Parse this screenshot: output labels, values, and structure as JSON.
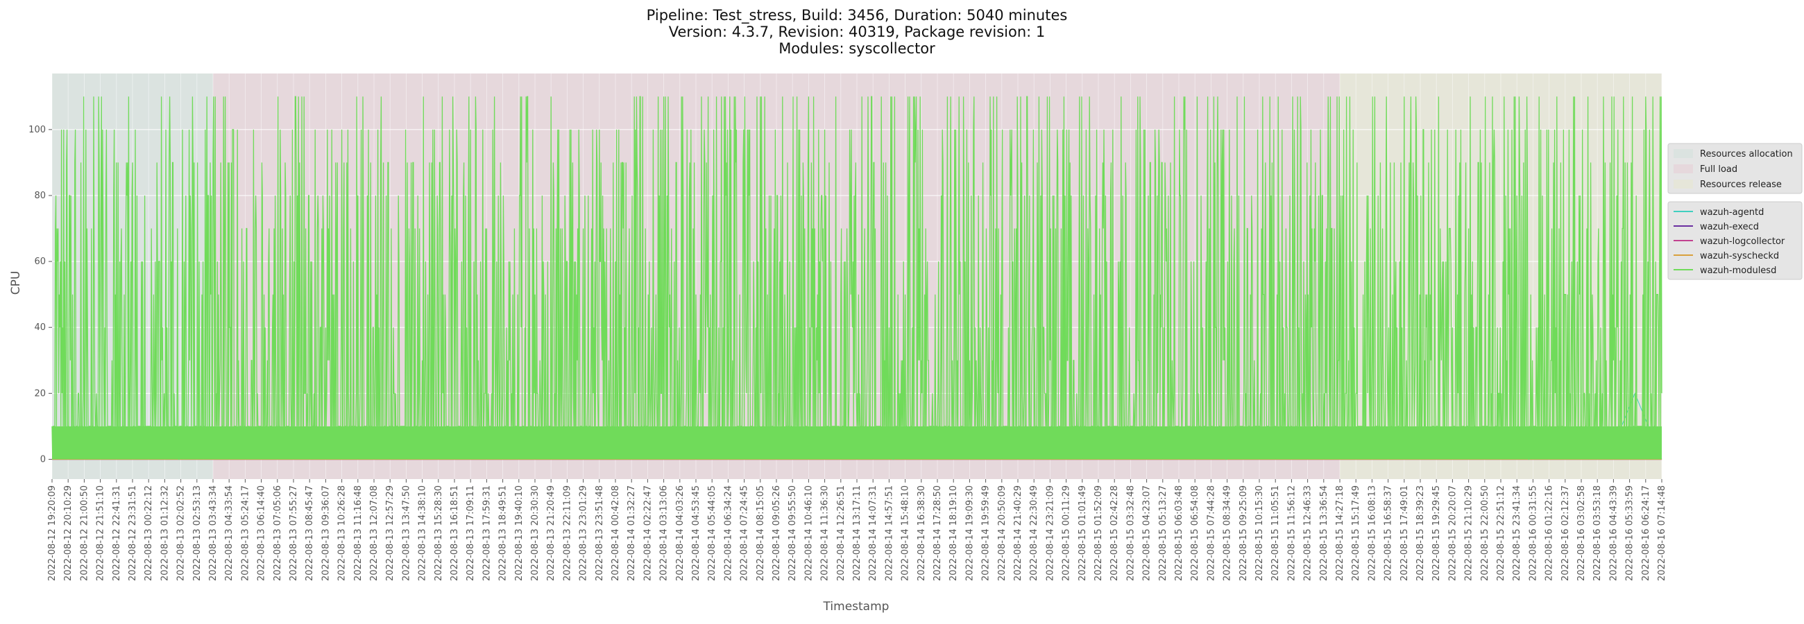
{
  "title_lines": [
    "Pipeline: Test_stress, Build: 3456, Duration: 5040 minutes",
    "Version: 4.3.7, Revision: 40319, Package revision: 1",
    "Modules: syscollector"
  ],
  "chart_data": {
    "type": "line",
    "xlabel": "Timestamp",
    "ylabel": "CPU",
    "ylim": [
      -6,
      117
    ],
    "yticks": [
      0,
      20,
      40,
      60,
      80,
      100
    ],
    "grid": true,
    "x_tick_labels": [
      "2022-08-12 19:20:09",
      "2022-08-12 20:10:29",
      "2022-08-12 21:00:50",
      "2022-08-12 21:51:10",
      "2022-08-12 22:41:31",
      "2022-08-12 23:31:51",
      "2022-08-13 00:22:12",
      "2022-08-13 01:12:32",
      "2022-08-13 02:02:52",
      "2022-08-13 02:53:13",
      "2022-08-13 03:43:34",
      "2022-08-13 04:33:54",
      "2022-08-13 05:24:17",
      "2022-08-13 06:14:40",
      "2022-08-13 07:05:06",
      "2022-08-13 07:55:27",
      "2022-08-13 08:45:47",
      "2022-08-13 09:36:07",
      "2022-08-13 10:26:28",
      "2022-08-13 11:16:48",
      "2022-08-13 12:07:08",
      "2022-08-13 12:57:29",
      "2022-08-13 13:47:50",
      "2022-08-13 14:38:10",
      "2022-08-13 15:28:30",
      "2022-08-13 16:18:51",
      "2022-08-13 17:09:11",
      "2022-08-13 17:59:31",
      "2022-08-13 18:49:51",
      "2022-08-13 19:40:10",
      "2022-08-13 20:30:30",
      "2022-08-13 21:20:49",
      "2022-08-13 22:11:09",
      "2022-08-13 23:01:29",
      "2022-08-13 23:51:48",
      "2022-08-14 00:42:08",
      "2022-08-14 01:32:27",
      "2022-08-14 02:22:47",
      "2022-08-14 03:13:06",
      "2022-08-14 04:03:26",
      "2022-08-14 04:53:45",
      "2022-08-14 05:44:05",
      "2022-08-14 06:34:24",
      "2022-08-14 07:24:45",
      "2022-08-14 08:15:05",
      "2022-08-14 09:05:26",
      "2022-08-14 09:55:50",
      "2022-08-14 10:46:10",
      "2022-08-14 11:36:30",
      "2022-08-14 12:26:51",
      "2022-08-14 13:17:11",
      "2022-08-14 14:07:31",
      "2022-08-14 14:57:51",
      "2022-08-14 15:48:10",
      "2022-08-14 16:38:30",
      "2022-08-14 17:28:50",
      "2022-08-14 18:19:10",
      "2022-08-14 19:09:30",
      "2022-08-14 19:59:49",
      "2022-08-14 20:50:09",
      "2022-08-14 21:40:29",
      "2022-08-14 22:30:49",
      "2022-08-14 23:21:09",
      "2022-08-15 00:11:29",
      "2022-08-15 01:01:49",
      "2022-08-15 01:52:09",
      "2022-08-15 02:42:28",
      "2022-08-15 03:32:48",
      "2022-08-15 04:23:07",
      "2022-08-15 05:13:27",
      "2022-08-15 06:03:48",
      "2022-08-15 06:54:08",
      "2022-08-15 07:44:28",
      "2022-08-15 08:34:49",
      "2022-08-15 09:25:09",
      "2022-08-15 10:15:30",
      "2022-08-15 11:05:51",
      "2022-08-15 11:56:12",
      "2022-08-15 12:46:33",
      "2022-08-15 13:36:54",
      "2022-08-15 14:27:18",
      "2022-08-15 15:17:49",
      "2022-08-15 16:08:13",
      "2022-08-15 16:58:37",
      "2022-08-15 17:49:01",
      "2022-08-15 18:39:23",
      "2022-08-15 19:29:45",
      "2022-08-15 20:20:07",
      "2022-08-15 21:10:29",
      "2022-08-15 22:00:50",
      "2022-08-15 22:51:12",
      "2022-08-15 23:41:34",
      "2022-08-16 00:31:55",
      "2022-08-16 01:22:16",
      "2022-08-16 02:12:37",
      "2022-08-16 03:02:58",
      "2022-08-16 03:53:18",
      "2022-08-16 04:43:39",
      "2022-08-16 05:33:59",
      "2022-08-16 06:24:17",
      "2022-08-16 07:14:48"
    ],
    "phases": [
      {
        "name": "Resources allocation",
        "start": "2022-08-12 19:20:09",
        "end": "2022-08-13 03:43:34",
        "color": "#dbe3e0"
      },
      {
        "name": "Full load",
        "start": "2022-08-13 03:43:34",
        "end": "2022-08-15 14:27:18",
        "color": "#e6d8dc"
      },
      {
        "name": "Resources release",
        "start": "2022-08-15 14:27:18",
        "end": "2022-08-16 07:14:48",
        "color": "#e6e6d9"
      }
    ],
    "series": [
      {
        "name": "wazuh-agentd",
        "color": "#3fcfbf",
        "baseline": 0,
        "peaks": [
          20
        ]
      },
      {
        "name": "wazuh-execd",
        "color": "#6a2fa0",
        "baseline": 0,
        "peaks": [
          0
        ]
      },
      {
        "name": "wazuh-logcollector",
        "color": "#c2418f",
        "baseline": 0,
        "peaks": [
          0
        ]
      },
      {
        "name": "wazuh-syscheckd",
        "color": "#d9a03c",
        "baseline": 0,
        "peaks": [
          0
        ]
      },
      {
        "name": "wazuh-modulesd",
        "color": "#70db5a",
        "baseline": 10,
        "peaks": [
          20,
          30,
          40,
          50,
          60,
          70,
          80,
          90,
          100,
          110
        ]
      }
    ]
  }
}
